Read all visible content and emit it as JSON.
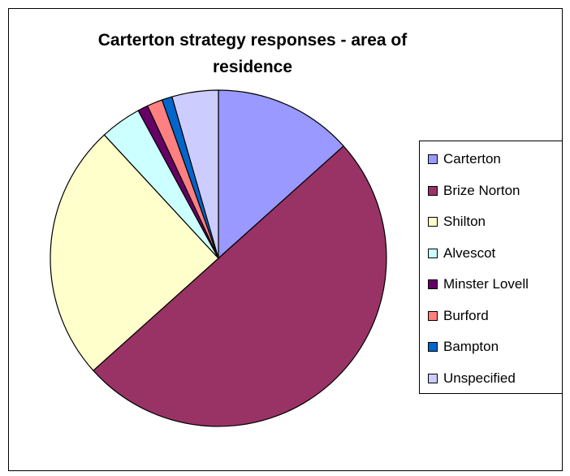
{
  "chart_data": {
    "type": "pie",
    "title": "Carterton strategy responses - area of residence",
    "categories": [
      "Carterton",
      "Brize Norton",
      "Shilton",
      "Alvescot",
      "Minster Lovell",
      "Burford",
      "Bampton",
      "Unspecified"
    ],
    "values": [
      13.5,
      50.5,
      25,
      4,
      1,
      1.5,
      1,
      4.5
    ],
    "unit": "% of responses (estimated)",
    "colors": [
      "#9999FF",
      "#993366",
      "#FFFFCC",
      "#CCFFFF",
      "#660066",
      "#FF8080",
      "#0066CC",
      "#CCCCFF"
    ],
    "start_angle_deg": 0,
    "direction": "clockwise",
    "legend": "right"
  }
}
